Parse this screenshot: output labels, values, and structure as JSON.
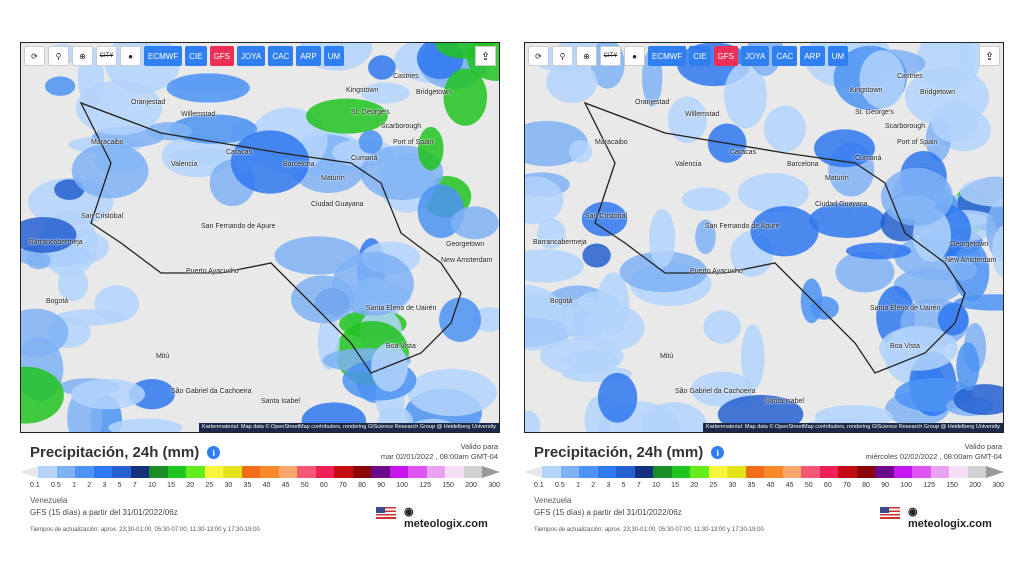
{
  "toolbar": {
    "buttons": [
      "refresh-icon",
      "pin-icon",
      "zoom-icon",
      "CITY",
      "dot-icon"
    ],
    "city_label": "CITY",
    "models": [
      "ECMWF",
      "CIE",
      "GFS",
      "JOYA",
      "CAC",
      "ARP",
      "UM"
    ],
    "active_model": "GFS",
    "share_icon": "share-icon"
  },
  "colors": {
    "accent": "#2f7ff0",
    "active": "#ee2f55"
  },
  "cities": [
    "Castries",
    "Kingstown",
    "Bridgetown",
    "Oranjestad",
    "Willemstad",
    "St. George's",
    "Scarborough",
    "Port of Spain",
    "Maracaibo",
    "Caracas",
    "Valencia",
    "Barcelona",
    "Maturín",
    "Cumaná",
    "Ciudad Guayana",
    "Georgetown",
    "New Amsterdam",
    "San Cristóbal",
    "Barrancabermeja",
    "Bogotá",
    "Puerto Ayacucho",
    "Boa Vista",
    "Santa Elena de Uairén",
    "San Fernando de Apure",
    "Mitú",
    "São Gabriel da Cachoeira",
    "Santa Isabel"
  ],
  "attribution": "Kartenmaterial: Map data © OpenStreetMap contributors, rendering GIScience Research Group @ Heidelberg University",
  "title": "Precipitación, 24h (mm)",
  "valid_label": "Valido para",
  "panels": [
    {
      "valid": "mar 02/01/2022 , 08:00am GMT-04"
    },
    {
      "valid": "miércoles 02/02/2022 , 08:00am GMT-04"
    }
  ],
  "legend": {
    "ticks": [
      "0.1",
      "0.5",
      "1",
      "2",
      "3",
      "5",
      "7",
      "10",
      "15",
      "20",
      "25",
      "30",
      "35",
      "40",
      "45",
      "50",
      "60",
      "70",
      "80",
      "90",
      "100",
      "125",
      "150",
      "200",
      "300"
    ],
    "colors": [
      "#b3d3fb",
      "#7fb2f5",
      "#4c93f3",
      "#2f78ef",
      "#2560d0",
      "#14307e",
      "#1b8c25",
      "#21c321",
      "#66ee1c",
      "#f7f53a",
      "#e4e21a",
      "#f26c1a",
      "#fa8a2c",
      "#f8a86a",
      "#f35676",
      "#ef1f55",
      "#c30c12",
      "#8a0408",
      "#6b0a8a",
      "#c514f0",
      "#dd56f2",
      "#eba1f3",
      "#f7dff8",
      "#d0d0d0"
    ]
  },
  "region": "Venezuela",
  "model_run": "GFS (15 días) a partir del 31/01/2022/06z",
  "brand": "meteologix.com",
  "update_times": "Tiempos de actualización: aprox. 23:30-01:00, 05:30-07:00, 11:30-13:00 y 17:30-19:00"
}
